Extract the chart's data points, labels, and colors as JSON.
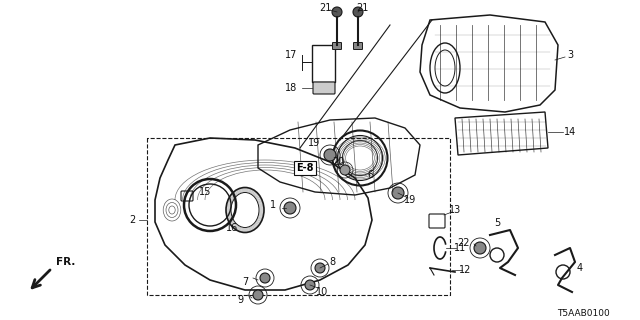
{
  "bg_color": "#ffffff",
  "line_color": "#1a1a1a",
  "label_color": "#111111",
  "diagram_code": "T5AAB0100",
  "fig_width": 6.4,
  "fig_height": 3.2,
  "dpi": 100
}
